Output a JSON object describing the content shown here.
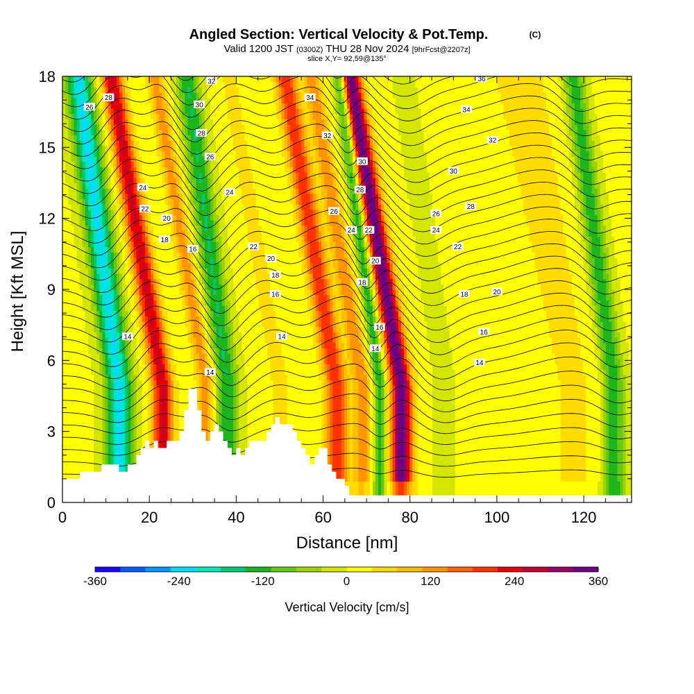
{
  "header": {
    "title": "Angled Section: Vertical Velocity & Pot.Temp.",
    "copyright": "(C)",
    "valid_prefix": "Valid 1200 JST",
    "valid_utc": "(0300Z)",
    "valid_date": "THU 28 Nov 2024",
    "forecast": "[9hrFcst@2207z]",
    "slice": "slice X,Y= 92,59@135°"
  },
  "colors": {
    "palette": [
      "#1e00ff",
      "#005aff",
      "#0096ff",
      "#00dcff",
      "#00e6b4",
      "#00c878",
      "#1eb41e",
      "#64c814",
      "#a0d200",
      "#d2e600",
      "#ffff00",
      "#ffdc00",
      "#ffbe00",
      "#ff9600",
      "#ff6400",
      "#ff3200",
      "#e60000",
      "#be0032",
      "#960064",
      "#6e0082"
    ],
    "contour": "#000000",
    "terrain": "#ffffff"
  },
  "chart_data": {
    "type": "heatmap",
    "xlabel": "Distance [nm]",
    "ylabel": "Height [Kft MSL]",
    "xlim": [
      0,
      131
    ],
    "ylim": [
      0,
      18
    ],
    "xticks": [
      0,
      20,
      40,
      60,
      80,
      100,
      120
    ],
    "yticks": [
      0,
      3,
      6,
      9,
      12,
      15,
      18
    ],
    "colorbar": {
      "label": "Vertical Velocity [cm/s]",
      "ticks": [
        -360,
        -240,
        -120,
        0,
        120,
        240,
        360
      ],
      "min": -360,
      "max": 360,
      "step": 36
    },
    "updraft_bands": [
      {
        "x": 23,
        "w": 2.5,
        "value": 250
      },
      {
        "x": 33,
        "w": 2.0,
        "value": 120
      },
      {
        "x": 50,
        "w": 3.0,
        "value": 40
      },
      {
        "x": 63,
        "w": 2.5,
        "value": 200
      },
      {
        "x": 69,
        "w": 2.0,
        "value": 120
      },
      {
        "x": 78,
        "w": 2.2,
        "value": 340
      },
      {
        "x": 118,
        "w": 6.0,
        "value": 30
      }
    ],
    "downdraft_bands": [
      {
        "x": 13,
        "w": 3.0,
        "value": -230
      },
      {
        "x": 38,
        "w": 2.5,
        "value": -150
      },
      {
        "x": 73,
        "w": 1.5,
        "value": -150
      },
      {
        "x": 88,
        "w": 3.0,
        "value": -60
      },
      {
        "x": 127,
        "w": 2.5,
        "value": -140
      }
    ],
    "terrain": {
      "x": [
        0,
        4,
        4,
        9,
        9,
        13,
        13,
        15,
        15,
        17,
        17,
        18,
        18,
        19,
        19,
        20,
        20,
        21,
        21,
        22,
        22,
        24,
        24,
        27,
        27,
        28,
        28,
        29,
        29,
        31,
        31,
        32,
        32,
        33,
        33,
        34,
        34,
        35,
        35,
        36,
        36,
        37,
        37,
        38,
        38,
        39,
        39,
        40,
        40,
        41,
        41,
        42,
        42,
        43,
        43,
        47,
        47,
        48,
        48,
        49,
        49,
        50,
        50,
        53,
        53,
        54,
        54,
        55,
        55,
        56,
        56,
        57,
        57,
        58,
        58,
        59,
        59,
        61,
        61,
        62,
        62,
        63,
        63,
        65,
        65,
        66,
        66,
        67,
        67,
        68,
        68,
        70,
        70,
        131
      ],
      "y": [
        1.0,
        1.0,
        1.3,
        1.3,
        1.6,
        1.6,
        1.3,
        1.3,
        1.6,
        1.6,
        2.0,
        2.0,
        2.3,
        2.3,
        2.6,
        2.6,
        2.3,
        2.3,
        2.6,
        2.6,
        2.3,
        2.3,
        2.6,
        2.6,
        3.0,
        3.0,
        3.9,
        3.9,
        4.8,
        4.8,
        3.9,
        3.9,
        3.0,
        3.0,
        2.6,
        2.6,
        3.0,
        3.0,
        3.3,
        3.3,
        3.0,
        3.0,
        2.6,
        2.6,
        2.3,
        2.3,
        2.0,
        2.0,
        2.3,
        2.3,
        2.0,
        2.0,
        2.3,
        2.3,
        2.6,
        2.6,
        3.0,
        3.0,
        3.3,
        3.3,
        3.6,
        3.6,
        3.3,
        3.3,
        3.0,
        3.0,
        2.6,
        2.6,
        2.3,
        2.3,
        2.0,
        2.0,
        1.6,
        1.6,
        2.0,
        2.0,
        2.3,
        2.3,
        1.6,
        1.6,
        1.3,
        1.3,
        1.0,
        1.0,
        0.7,
        0.7,
        0.3,
        0.3,
        0.3,
        0.3,
        0.3,
        0.3,
        0.3,
        0.3
      ]
    },
    "contour_labels": [
      {
        "text": "26",
        "x": 6.2,
        "y": 16.7
      },
      {
        "text": "28",
        "x": 10.6,
        "y": 17.1
      },
      {
        "text": "32",
        "x": 34.3,
        "y": 17.8
      },
      {
        "text": "30",
        "x": 31.5,
        "y": 16.8
      },
      {
        "text": "28",
        "x": 32.0,
        "y": 15.6
      },
      {
        "text": "26",
        "x": 34.0,
        "y": 14.6
      },
      {
        "text": "34",
        "x": 57.0,
        "y": 17.1
      },
      {
        "text": "32",
        "x": 61.0,
        "y": 15.5
      },
      {
        "text": "30",
        "x": 69.0,
        "y": 14.4
      },
      {
        "text": "28",
        "x": 68.5,
        "y": 13.2
      },
      {
        "text": "26",
        "x": 62.5,
        "y": 12.3
      },
      {
        "text": "24",
        "x": 66.5,
        "y": 11.5
      },
      {
        "text": "22",
        "x": 70.5,
        "y": 11.5
      },
      {
        "text": "20",
        "x": 72.0,
        "y": 10.2
      },
      {
        "text": "18",
        "x": 69.0,
        "y": 9.3
      },
      {
        "text": "16",
        "x": 73.0,
        "y": 7.4
      },
      {
        "text": "14",
        "x": 72.0,
        "y": 6.5
      },
      {
        "text": "36",
        "x": 96.5,
        "y": 17.9
      },
      {
        "text": "34",
        "x": 93.0,
        "y": 16.6
      },
      {
        "text": "32",
        "x": 99.0,
        "y": 15.3
      },
      {
        "text": "30",
        "x": 90.0,
        "y": 14.0
      },
      {
        "text": "28",
        "x": 94.0,
        "y": 12.5
      },
      {
        "text": "26",
        "x": 86.0,
        "y": 12.2
      },
      {
        "text": "24",
        "x": 86.0,
        "y": 11.5
      },
      {
        "text": "22",
        "x": 91.0,
        "y": 10.8
      },
      {
        "text": "20",
        "x": 100.0,
        "y": 8.9
      },
      {
        "text": "18",
        "x": 92.5,
        "y": 8.8
      },
      {
        "text": "16",
        "x": 97.0,
        "y": 7.2
      },
      {
        "text": "14",
        "x": 96.0,
        "y": 5.9
      },
      {
        "text": "24",
        "x": 18.5,
        "y": 13.3
      },
      {
        "text": "22",
        "x": 19.0,
        "y": 12.4
      },
      {
        "text": "20",
        "x": 24.0,
        "y": 12.0
      },
      {
        "text": "18",
        "x": 23.5,
        "y": 11.1
      },
      {
        "text": "16",
        "x": 30.0,
        "y": 10.7
      },
      {
        "text": "24",
        "x": 38.5,
        "y": 13.1
      },
      {
        "text": "22",
        "x": 44.0,
        "y": 10.8
      },
      {
        "text": "20",
        "x": 48.0,
        "y": 10.3
      },
      {
        "text": "18",
        "x": 49.0,
        "y": 9.6
      },
      {
        "text": "16",
        "x": 49.0,
        "y": 8.8
      },
      {
        "text": "14",
        "x": 15.0,
        "y": 7.0
      },
      {
        "text": "14",
        "x": 50.5,
        "y": 7.0
      },
      {
        "text": "14",
        "x": 34.0,
        "y": 5.5
      }
    ]
  }
}
